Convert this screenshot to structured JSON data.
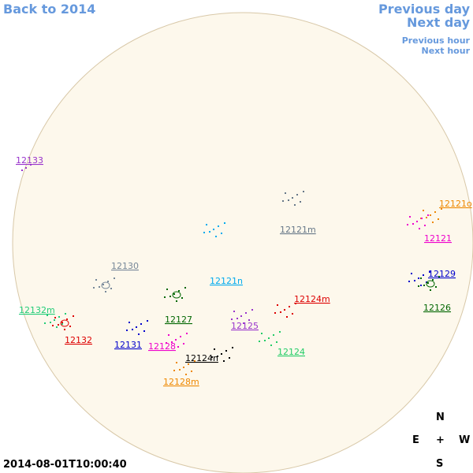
{
  "navigation": {
    "back": "Back to 2014",
    "previous_day": "Previous day",
    "next_day": "Next day",
    "previous_hour": "Previous hour",
    "next_hour": "Next hour"
  },
  "regions": [
    {
      "label": "12133",
      "color": "#9933cc"
    },
    {
      "label": "12121o",
      "color": "#ee8800"
    },
    {
      "label": "12121",
      "color": "#ee00cc"
    },
    {
      "label": "12129",
      "color": "#0000cc"
    },
    {
      "label": "12126",
      "color": "#006600"
    },
    {
      "label": "12130",
      "color": "#778899"
    },
    {
      "label": "12121n",
      "color": "#00aaee"
    },
    {
      "label": "12121m",
      "color": "#667788"
    },
    {
      "label": "12124m",
      "color": "#dd0000"
    },
    {
      "label": "12132m",
      "color": "#22cc77"
    },
    {
      "label": "12127",
      "color": "#006600"
    },
    {
      "label": "12125",
      "color": "#9933cc"
    },
    {
      "label": "12132",
      "color": "#dd0000"
    },
    {
      "label": "12131",
      "color": "#0000cc"
    },
    {
      "label": "12128",
      "color": "#ee00cc"
    },
    {
      "label": "12124n",
      "color": "#000000"
    },
    {
      "label": "12124",
      "color": "#22cc66"
    },
    {
      "label": "12128m",
      "color": "#ee8800"
    }
  ],
  "timestamp": "2014-08-01T10:00:40",
  "compass": {
    "north": "N",
    "east": "E",
    "center": "+",
    "west": "W",
    "south": "S"
  }
}
